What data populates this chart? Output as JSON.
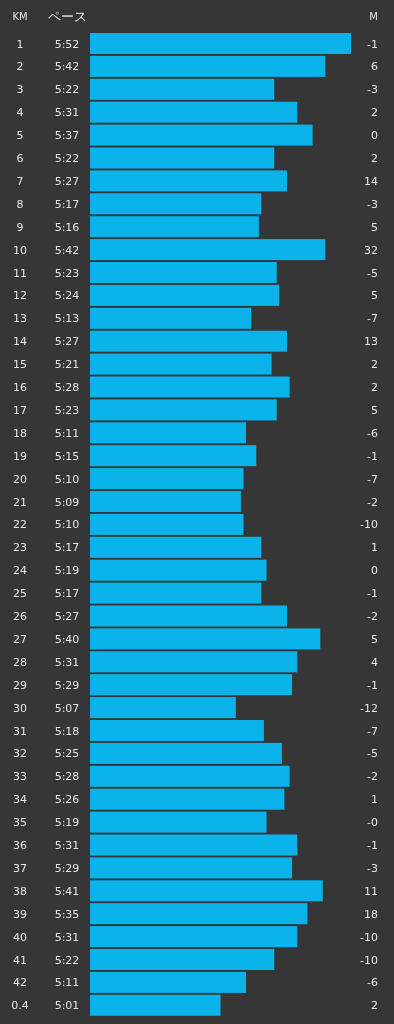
{
  "chart_data": {
    "type": "bar",
    "orientation": "horizontal",
    "xlim": [
      4.167,
      5.867
    ],
    "ylabel": "KM",
    "xlabel": "ペース",
    "y2label": "M",
    "color": "#0ab4ea",
    "categories": [
      "1",
      "2",
      "3",
      "4",
      "5",
      "6",
      "7",
      "8",
      "9",
      "10",
      "11",
      "12",
      "13",
      "14",
      "15",
      "16",
      "17",
      "18",
      "19",
      "20",
      "21",
      "22",
      "23",
      "24",
      "25",
      "26",
      "27",
      "28",
      "29",
      "30",
      "31",
      "32",
      "33",
      "34",
      "35",
      "36",
      "37",
      "38",
      "39",
      "40",
      "41",
      "42",
      "0.4"
    ],
    "values": [
      5.867,
      5.7,
      5.367,
      5.517,
      5.617,
      5.367,
      5.45,
      5.283,
      5.267,
      5.7,
      5.383,
      5.4,
      5.217,
      5.45,
      5.35,
      5.467,
      5.383,
      5.183,
      5.25,
      5.167,
      5.15,
      5.167,
      5.283,
      5.317,
      5.283,
      5.45,
      5.667,
      5.517,
      5.483,
      5.117,
      5.3,
      5.417,
      5.467,
      5.433,
      5.317,
      5.517,
      5.483,
      5.683,
      5.583,
      5.517,
      5.367,
      5.183,
      5.017
    ],
    "value_labels": [
      "5:52",
      "5:42",
      "5:22",
      "5:31",
      "5:37",
      "5:22",
      "5:27",
      "5:17",
      "5:16",
      "5:42",
      "5:23",
      "5:24",
      "5:13",
      "5:27",
      "5:21",
      "5:28",
      "5:23",
      "5:11",
      "5:15",
      "5:10",
      "5:09",
      "5:10",
      "5:17",
      "5:19",
      "5:17",
      "5:27",
      "5:40",
      "5:31",
      "5:29",
      "5:07",
      "5:18",
      "5:25",
      "5:28",
      "5:26",
      "5:19",
      "5:31",
      "5:29",
      "5:41",
      "5:35",
      "5:31",
      "5:22",
      "5:11",
      "5:01"
    ],
    "annotations": [
      "-1",
      "6",
      "-3",
      "2",
      "0",
      "2",
      "14",
      "-3",
      "5",
      "32",
      "-5",
      "5",
      "-7",
      "13",
      "2",
      "2",
      "5",
      "-6",
      "-1",
      "-7",
      "-2",
      "-10",
      "1",
      "0",
      "-1",
      "-2",
      "5",
      "4",
      "-1",
      "-12",
      "-7",
      "-5",
      "-2",
      "1",
      "-0",
      "-1",
      "-3",
      "11",
      "18",
      "-10",
      "-10",
      "-6",
      "2"
    ]
  }
}
